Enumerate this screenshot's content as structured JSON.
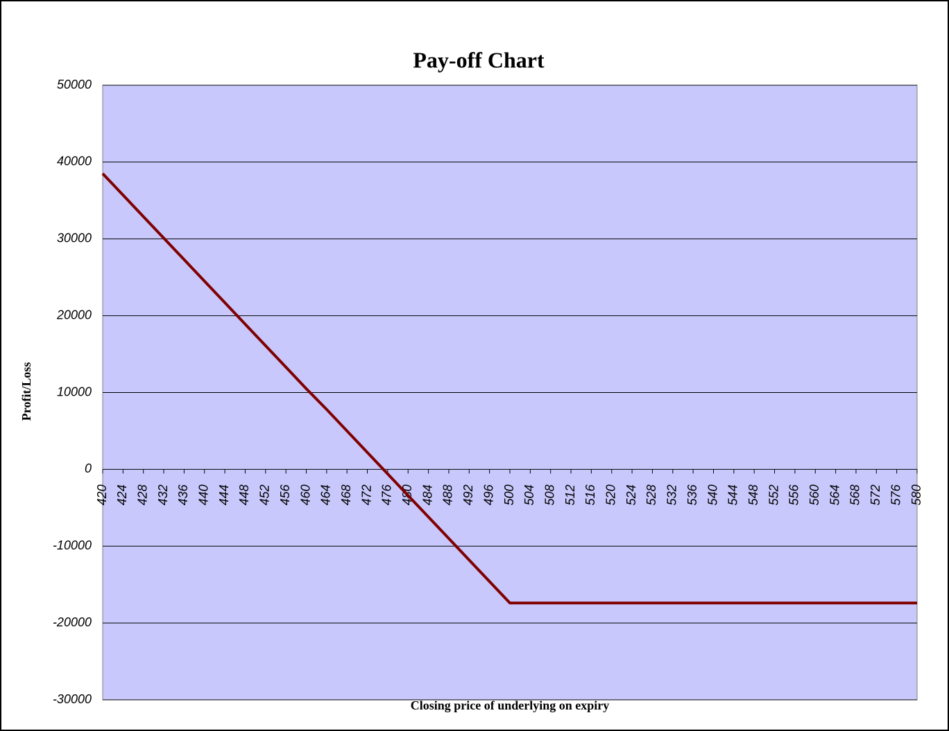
{
  "chart_data": {
    "type": "line",
    "title": "Pay-off Chart",
    "x_label": "Closing price of underlying on expiry",
    "y_label": "Profit/Loss",
    "x": [
      420,
      424,
      428,
      432,
      436,
      440,
      444,
      448,
      452,
      456,
      460,
      464,
      468,
      472,
      476,
      480,
      484,
      488,
      492,
      496,
      500,
      504,
      508,
      512,
      516,
      520,
      524,
      528,
      532,
      536,
      540,
      544,
      548,
      552,
      556,
      560,
      564,
      568,
      572,
      576,
      580
    ],
    "series": [
      {
        "name": "Pay-off",
        "color": "#800000",
        "values": [
          38500,
          35700,
          32900,
          30100,
          27300,
          24500,
          21700,
          18900,
          16100,
          13300,
          10500,
          7800,
          5000,
          2200,
          -600,
          -3400,
          -6200,
          -9000,
          -11800,
          -14600,
          -17400,
          -17400,
          -17400,
          -17400,
          -17400,
          -17400,
          -17400,
          -17400,
          -17400,
          -17400,
          -17400,
          -17400,
          -17400,
          -17400,
          -17400,
          -17400,
          -17400,
          -17400,
          -17400,
          -17400,
          -17400
        ]
      }
    ],
    "xlim": [
      420,
      580
    ],
    "xticks": [
      420,
      424,
      428,
      432,
      436,
      440,
      444,
      448,
      452,
      456,
      460,
      464,
      468,
      472,
      476,
      480,
      484,
      488,
      492,
      496,
      500,
      504,
      508,
      512,
      516,
      520,
      524,
      528,
      532,
      536,
      540,
      544,
      548,
      552,
      556,
      560,
      564,
      568,
      572,
      576,
      580
    ],
    "ylim": [
      -30000,
      50000
    ],
    "yticks": [
      -30000,
      -20000,
      -10000,
      0,
      10000,
      20000,
      30000,
      40000,
      50000
    ],
    "grid": true,
    "plot_background": "#c8c8fc"
  }
}
